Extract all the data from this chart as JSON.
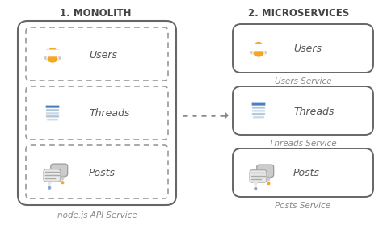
{
  "title_left": "1. MONOLITH",
  "title_right": "2. MICROSERVICES",
  "services": [
    "Users",
    "Threads",
    "Posts"
  ],
  "service_labels_right": [
    "Users Service",
    "Threads Service",
    "Posts Service"
  ],
  "monolith_label": "node.js API Service",
  "bg_color": "#ffffff",
  "title_color": "#444444",
  "service_label_color": "#888888",
  "text_color": "#555555",
  "box_edge_color": "#666666",
  "dash_color": "#999999",
  "arrow_color": "#888888",
  "user_orange": "#F5A623",
  "user_gray_dark": "#888888",
  "user_gray_light": "#cccccc",
  "thread_blue": "#4A7FC1",
  "thread_light": "#aec6d8",
  "thread_lighter": "#c8dae8",
  "post_gray": "#b8b8b8",
  "post_light": "#d8d8d8",
  "post_lines": "#aaaaaa",
  "post_dot": "#F5A623",
  "post_dot2": "#88aacc"
}
